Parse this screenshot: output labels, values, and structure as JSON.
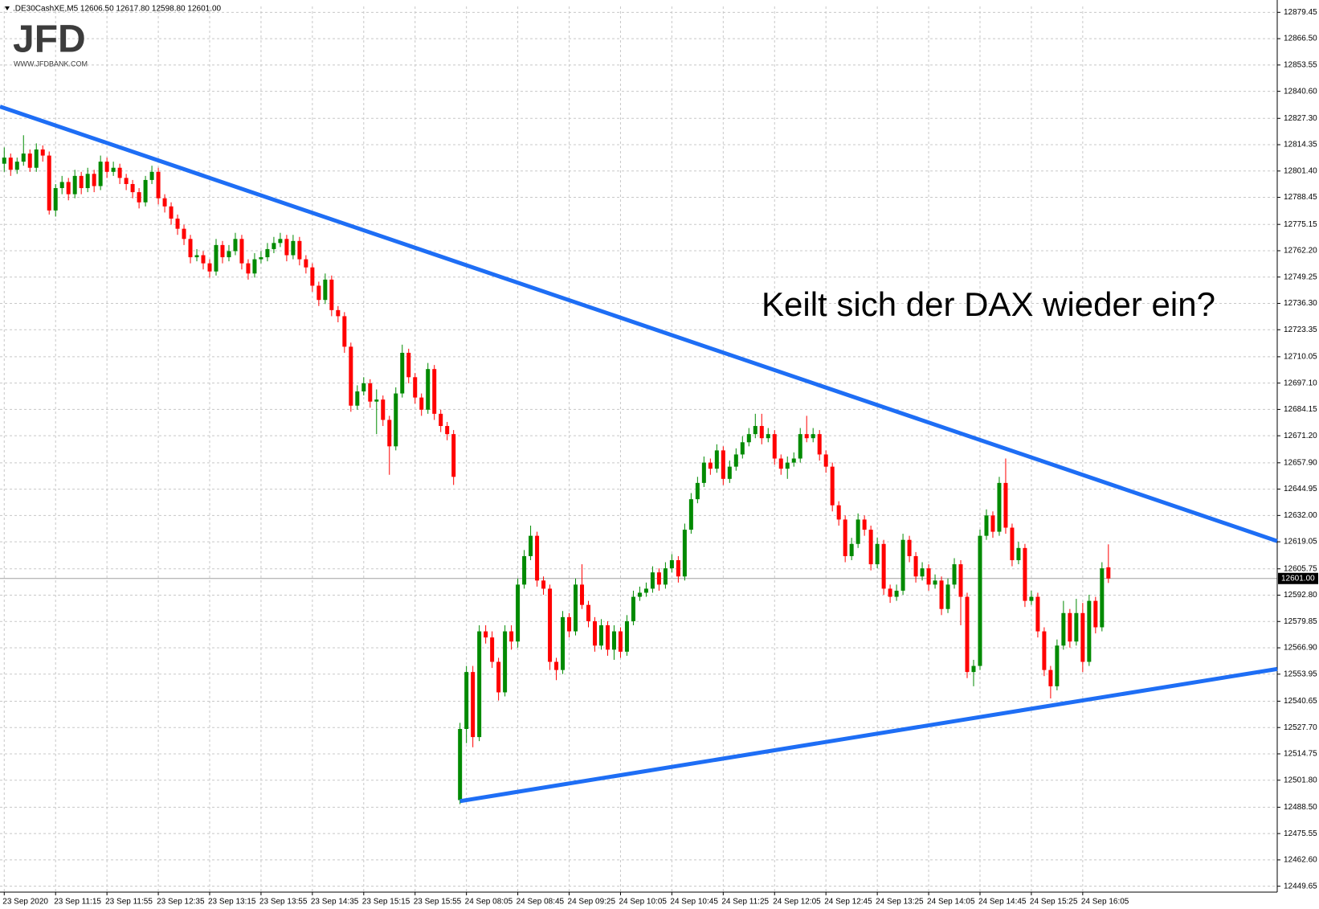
{
  "header": ".DE30CashXE,M5  12606.50 12617.80 12598.80 12601.00",
  "logo": {
    "name": "JFD",
    "url": "WWW.JFDBANK.COM"
  },
  "chart_data": {
    "type": "candlestick",
    "annotation": "Keilt sich der DAX wieder ein?",
    "up_color": "#008a00",
    "down_color": "#ff0000",
    "grid": true,
    "xlim": [
      -0.66,
      198.3
    ],
    "ylim": [
      12446.75,
      12882.35
    ],
    "xticks": [
      {
        "value": 0,
        "label": "23 Sep 2020"
      },
      {
        "value": 8,
        "label": "23 Sep 11:15"
      },
      {
        "value": 16,
        "label": "23 Sep 11:55"
      },
      {
        "value": 24,
        "label": "23 Sep 12:35"
      },
      {
        "value": 32,
        "label": "23 Sep 13:15"
      },
      {
        "value": 40,
        "label": "23 Sep 13:55"
      },
      {
        "value": 48,
        "label": "23 Sep 14:35"
      },
      {
        "value": 56,
        "label": "23 Sep 15:15"
      },
      {
        "value": 64,
        "label": "23 Sep 15:55"
      },
      {
        "value": 72,
        "label": "24 Sep 08:05"
      },
      {
        "value": 80,
        "label": "24 Sep 08:45"
      },
      {
        "value": 88,
        "label": "24 Sep 09:25"
      },
      {
        "value": 96,
        "label": "24 Sep 10:05"
      },
      {
        "value": 104,
        "label": "24 Sep 10:45"
      },
      {
        "value": 112,
        "label": "24 Sep 11:25"
      },
      {
        "value": 120,
        "label": "24 Sep 12:05"
      },
      {
        "value": 128,
        "label": "24 Sep 12:45"
      },
      {
        "value": 136,
        "label": "24 Sep 13:25"
      },
      {
        "value": 144,
        "label": "24 Sep 14:05"
      },
      {
        "value": 152,
        "label": "24 Sep 14:45"
      },
      {
        "value": 160,
        "label": "24 Sep 15:25"
      },
      {
        "value": 168,
        "label": "24 Sep 16:05"
      }
    ],
    "yticks": [
      12879.45,
      {
        "value": 12866.5,
        "label": "12866.50"
      },
      12853.55,
      {
        "value": 12840.6,
        "label": "12840.60"
      },
      {
        "value": 12827.3,
        "label": "12827.30"
      },
      12814.35,
      {
        "value": 12801.4,
        "label": "12801.40"
      },
      12788.45,
      12775.15,
      {
        "value": 12762.2,
        "label": "12762.20"
      },
      12749.25,
      {
        "value": 12736.3,
        "label": "12736.30"
      },
      12723.35,
      12710.05,
      {
        "value": 12697.1,
        "label": "12697.10"
      },
      12684.15,
      {
        "value": 12671.2,
        "label": "12671.20"
      },
      {
        "value": 12657.9,
        "label": "12657.90"
      },
      12644.95,
      {
        "value": 12632,
        "label": "12632.00"
      },
      12619.05,
      12605.75,
      {
        "value": 12592.8,
        "label": "12592.80"
      },
      12579.85,
      {
        "value": 12566.9,
        "label": "12566.90"
      },
      12553.95,
      12540.65,
      {
        "value": 12527.7,
        "label": "12527.70"
      },
      12514.75,
      {
        "value": 12501.8,
        "label": "12501.80"
      },
      {
        "value": 12488.5,
        "label": "12488.50"
      },
      12475.55,
      {
        "value": 12462.6,
        "label": "12462.60"
      },
      12449.65
    ],
    "current_price": {
      "value": 12601,
      "label": "12601.00"
    },
    "trendline_color": "#1e6ef5",
    "trendlines": [
      {
        "from": [
          -0.66,
          12833.1
        ],
        "to": [
          198.3,
          12619.4
        ]
      },
      {
        "from": [
          71,
          12491.5
        ],
        "to": [
          198.3,
          12556.5
        ]
      }
    ],
    "candles": [
      [
        12805,
        12813,
        12801,
        12808
      ],
      [
        12808,
        12810,
        12799,
        12802
      ],
      [
        12802,
        12808,
        12800,
        12806
      ],
      [
        12806,
        12819,
        12804,
        12810
      ],
      [
        12810,
        12812,
        12801,
        12803
      ],
      [
        12803,
        12815,
        12801,
        12812
      ],
      [
        12812,
        12814,
        12806,
        12809
      ],
      [
        12809,
        12811,
        12780,
        12782
      ],
      [
        12782,
        12795,
        12779,
        12793
      ],
      [
        12793,
        12799,
        12790,
        12796
      ],
      [
        12796,
        12798,
        12787,
        12790
      ],
      [
        12790,
        12802,
        12788,
        12799
      ],
      [
        12799,
        12801,
        12790,
        12793
      ],
      [
        12793,
        12803,
        12791,
        12800
      ],
      [
        12800,
        12802,
        12791,
        12794
      ],
      [
        12794,
        12809,
        12792,
        12806
      ],
      [
        12806,
        12808,
        12798,
        12801
      ],
      [
        12801,
        12806,
        12799,
        12803
      ],
      [
        12803,
        12805,
        12795,
        12798
      ],
      [
        12798,
        12800,
        12792,
        12795
      ],
      [
        12795,
        12797,
        12788,
        12791
      ],
      [
        12791,
        12793,
        12783,
        12786
      ],
      [
        12786,
        12799,
        12784,
        12797
      ],
      [
        12797,
        12804,
        12795,
        12801
      ],
      [
        12801,
        12803,
        12785,
        12788
      ],
      [
        12788,
        12790,
        12781,
        12784
      ],
      [
        12784,
        12786,
        12775,
        12778
      ],
      [
        12778,
        12780,
        12770,
        12773
      ],
      [
        12773,
        12775,
        12765,
        12768
      ],
      [
        12768,
        12770,
        12756,
        12759
      ],
      [
        12759,
        12763,
        12757,
        12760
      ],
      [
        12760,
        12762,
        12753,
        12756
      ],
      [
        12756,
        12758,
        12749,
        12752
      ],
      [
        12752,
        12768,
        12750,
        12765
      ],
      [
        12765,
        12767,
        12756,
        12759
      ],
      [
        12759,
        12765,
        12757,
        12762
      ],
      [
        12762,
        12771,
        12760,
        12768
      ],
      [
        12768,
        12770,
        12753,
        12756
      ],
      [
        12756,
        12758,
        12748,
        12751
      ],
      [
        12751,
        12761,
        12749,
        12758
      ],
      [
        12758,
        12762,
        12756,
        12759
      ],
      [
        12759,
        12766,
        12757,
        12763
      ],
      [
        12763,
        12769,
        12761,
        12766
      ],
      [
        12766,
        12771,
        12764,
        12768
      ],
      [
        12768,
        12770,
        12757,
        12760
      ],
      [
        12760,
        12770,
        12758,
        12767
      ],
      [
        12767,
        12769,
        12755,
        12758
      ],
      [
        12758,
        12760,
        12751,
        12754
      ],
      [
        12754,
        12756,
        12742,
        12745
      ],
      [
        12745,
        12747,
        12735,
        12738
      ],
      [
        12738,
        12751,
        12736,
        12748
      ],
      [
        12748,
        12750,
        12730,
        12733
      ],
      [
        12733,
        12735,
        12727,
        12730
      ],
      [
        12730,
        12732,
        12712,
        12715
      ],
      [
        12715,
        12717,
        12683,
        12686
      ],
      [
        12686,
        12696,
        12684,
        12693
      ],
      [
        12693,
        12700,
        12691,
        12697
      ],
      [
        12697,
        12699,
        12685,
        12688
      ],
      [
        12688,
        12694,
        12672,
        12689
      ],
      [
        12689,
        12691,
        12676,
        12679
      ],
      [
        12679,
        12681,
        12652,
        12666
      ],
      [
        12666,
        12695,
        12664,
        12692
      ],
      [
        12692,
        12716,
        12690,
        12712
      ],
      [
        12712,
        12714,
        12697,
        12700
      ],
      [
        12700,
        12702,
        12687,
        12690
      ],
      [
        12690,
        12692,
        12681,
        12684
      ],
      [
        12684,
        12707,
        12682,
        12704
      ],
      [
        12704,
        12706,
        12679,
        12682
      ],
      [
        12682,
        12684,
        12673,
        12676
      ],
      [
        12676,
        12678,
        12669,
        12672
      ],
      [
        12672,
        12674,
        12647,
        12651
      ],
      [
        12492,
        12530,
        12490,
        12527
      ],
      [
        12527,
        12558,
        12520,
        12555
      ],
      [
        12555,
        12558,
        12518,
        12523
      ],
      [
        12523,
        12578,
        12521,
        12575
      ],
      [
        12575,
        12578,
        12569,
        12572
      ],
      [
        12572,
        12575,
        12557,
        12560
      ],
      [
        12560,
        12562,
        12541,
        12545
      ],
      [
        12545,
        12578,
        12543,
        12575
      ],
      [
        12575,
        12578,
        12566,
        12570
      ],
      [
        12570,
        12601,
        12567,
        12598
      ],
      [
        12598,
        12615,
        12596,
        12612
      ],
      [
        12612,
        12627,
        12610,
        12622
      ],
      [
        12622,
        12624,
        12597,
        12600
      ],
      [
        12600,
        12602,
        12593,
        12596
      ],
      [
        12596,
        12598,
        12556,
        12560
      ],
      [
        12560,
        12562,
        12551,
        12556
      ],
      [
        12556,
        12585,
        12554,
        12582
      ],
      [
        12582,
        12584,
        12572,
        12575
      ],
      [
        12575,
        12601,
        12573,
        12598
      ],
      [
        12598,
        12608,
        12586,
        12588
      ],
      [
        12588,
        12590,
        12577,
        12580
      ],
      [
        12580,
        12582,
        12565,
        12568
      ],
      [
        12568,
        12581,
        12566,
        12578
      ],
      [
        12578,
        12580,
        12563,
        12566
      ],
      [
        12566,
        12578,
        12561,
        12575
      ],
      [
        12575,
        12577,
        12562,
        12565
      ],
      [
        12565,
        12583,
        12563,
        12580
      ],
      [
        12580,
        12595,
        12578,
        12592
      ],
      [
        12592,
        12597,
        12590,
        12594
      ],
      [
        12594,
        12599,
        12592,
        12596
      ],
      [
        12596,
        12607,
        12594,
        12604
      ],
      [
        12604,
        12606,
        12595,
        12598
      ],
      [
        12598,
        12609,
        12596,
        12606
      ],
      [
        12606,
        12613,
        12604,
        12610
      ],
      [
        12610,
        12612,
        12599,
        12602
      ],
      [
        12602,
        12628,
        12600,
        12625
      ],
      [
        12625,
        12643,
        12623,
        12640
      ],
      [
        12640,
        12651,
        12638,
        12648
      ],
      [
        12648,
        12661,
        12646,
        12658
      ],
      [
        12658,
        12660,
        12652,
        12655
      ],
      [
        12655,
        12667,
        12653,
        12664
      ],
      [
        12664,
        12666,
        12647,
        12650
      ],
      [
        12650,
        12659,
        12648,
        12656
      ],
      [
        12656,
        12665,
        12654,
        12662
      ],
      [
        12662,
        12671,
        12660,
        12668
      ],
      [
        12668,
        12675,
        12666,
        12672
      ],
      [
        12672,
        12682,
        12670,
        12676
      ],
      [
        12676,
        12682,
        12667,
        12670
      ],
      [
        12670,
        12675,
        12668,
        12672
      ],
      [
        12672,
        12674,
        12657,
        12660
      ],
      [
        12660,
        12662,
        12652,
        12655
      ],
      [
        12655,
        12661,
        12650,
        12658
      ],
      [
        12658,
        12663,
        12656,
        12660
      ],
      [
        12660,
        12675,
        12658,
        12672
      ],
      [
        12672,
        12681,
        12668,
        12670
      ],
      [
        12670,
        12675,
        12668,
        12672
      ],
      [
        12672,
        12674,
        12659,
        12662
      ],
      [
        12662,
        12664,
        12653,
        12656
      ],
      [
        12656,
        12658,
        12634,
        12637
      ],
      [
        12637,
        12639,
        12627,
        12630
      ],
      [
        12630,
        12632,
        12609,
        12612
      ],
      [
        12612,
        12621,
        12610,
        12618
      ],
      [
        12618,
        12633,
        12616,
        12630
      ],
      [
        12630,
        12632,
        12622,
        12625
      ],
      [
        12625,
        12627,
        12605,
        12608
      ],
      [
        12608,
        12621,
        12606,
        12618
      ],
      [
        12618,
        12620,
        12593,
        12596
      ],
      [
        12596,
        12598,
        12589,
        12592
      ],
      [
        12592,
        12598,
        12590,
        12595
      ],
      [
        12595,
        12623,
        12593,
        12620
      ],
      [
        12620,
        12622,
        12609,
        12612
      ],
      [
        12612,
        12614,
        12599,
        12602
      ],
      [
        12602,
        12609,
        12600,
        12606
      ],
      [
        12606,
        12608,
        12595,
        12598
      ],
      [
        12598,
        12603,
        12596,
        12600
      ],
      [
        12600,
        12602,
        12583,
        12586
      ],
      [
        12586,
        12601,
        12584,
        12598
      ],
      [
        12598,
        12611,
        12596,
        12608
      ],
      [
        12608,
        12610,
        12578,
        12592
      ],
      [
        12592,
        12594,
        12552,
        12555
      ],
      [
        12555,
        12561,
        12548,
        12558
      ],
      [
        12558,
        12625,
        12556,
        12622
      ],
      [
        12622,
        12635,
        12620,
        12632
      ],
      [
        12632,
        12634,
        12621,
        12624
      ],
      [
        12624,
        12651,
        12622,
        12648
      ],
      [
        12648,
        12660,
        12623,
        12626
      ],
      [
        12626,
        12628,
        12607,
        12610
      ],
      [
        12610,
        12619,
        12608,
        12616
      ],
      [
        12616,
        12618,
        12587,
        12590
      ],
      [
        12590,
        12595,
        12588,
        12592
      ],
      [
        12592,
        12594,
        12572,
        12575
      ],
      [
        12575,
        12577,
        12553,
        12556
      ],
      [
        12556,
        12558,
        12542,
        12548
      ],
      [
        12548,
        12571,
        12546,
        12568
      ],
      [
        12568,
        12590,
        12566,
        12584
      ],
      [
        12584,
        12586,
        12567,
        12570
      ],
      [
        12570,
        12591,
        12568,
        12584
      ],
      [
        12584,
        12589,
        12555,
        12560
      ],
      [
        12560,
        12593,
        12558,
        12590
      ],
      [
        12590,
        12592,
        12574,
        12577
      ],
      [
        12577,
        12609,
        12575,
        12606
      ],
      [
        12606.5,
        12617.8,
        12598.8,
        12601
      ]
    ]
  }
}
